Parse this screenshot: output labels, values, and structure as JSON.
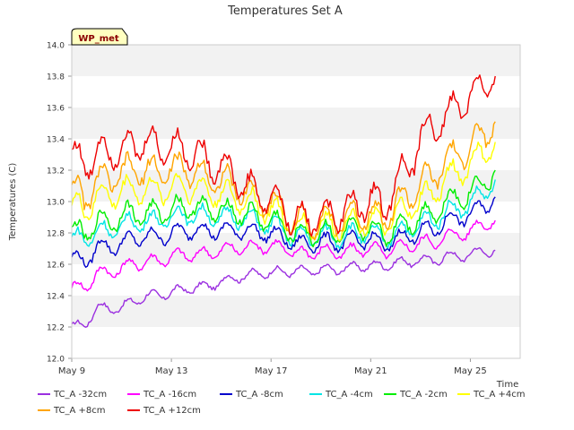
{
  "chart_data": {
    "type": "line",
    "title": "Temperatures Set A",
    "xlabel": "Time",
    "ylabel": "Temperatures (C)",
    "badge": "WP_met",
    "xlim": [
      0,
      18
    ],
    "ylim": [
      12.0,
      14.0
    ],
    "grid": "horizontal bands",
    "legend_position": "bottom",
    "x_ticks": [
      {
        "value": 0,
        "label": "May 9"
      },
      {
        "value": 4,
        "label": "May 13"
      },
      {
        "value": 8,
        "label": "May 17"
      },
      {
        "value": 12,
        "label": "May 21"
      },
      {
        "value": 16,
        "label": "May 25"
      }
    ],
    "y_ticks": [
      12.0,
      12.2,
      12.4,
      12.6,
      12.8,
      13.0,
      13.2,
      13.4,
      13.6,
      13.8,
      14.0
    ],
    "x": [
      0.0,
      0.5,
      1.0,
      1.5,
      2.0,
      2.5,
      3.0,
      3.5,
      4.0,
      4.5,
      5.0,
      5.5,
      6.0,
      6.5,
      7.0,
      7.5,
      8.0,
      8.5,
      9.0,
      9.5,
      10.0,
      10.5,
      11.0,
      11.5,
      12.0,
      12.5,
      13.0,
      13.5,
      14.0,
      14.5,
      15.0,
      15.5,
      16.0,
      16.5,
      17.0
    ],
    "series": [
      {
        "name": "TC_A -32cm",
        "color": "#9b30e0",
        "values": [
          12.21,
          12.2,
          12.33,
          12.31,
          12.33,
          12.36,
          12.4,
          12.4,
          12.42,
          12.44,
          12.45,
          12.46,
          12.49,
          12.51,
          12.53,
          12.54,
          12.55,
          12.55,
          12.56,
          12.55,
          12.57,
          12.56,
          12.58,
          12.58,
          12.6,
          12.58,
          12.62,
          12.6,
          12.64,
          12.61,
          12.66,
          12.64,
          12.67,
          12.68,
          12.69
        ]
      },
      {
        "name": "TC_A -16cm",
        "color": "#ff00ff",
        "values": [
          12.46,
          12.44,
          12.55,
          12.54,
          12.58,
          12.6,
          12.62,
          12.62,
          12.65,
          12.66,
          12.66,
          12.67,
          12.69,
          12.7,
          12.71,
          12.71,
          12.72,
          12.7,
          12.68,
          12.66,
          12.7,
          12.66,
          12.69,
          12.68,
          12.72,
          12.66,
          12.72,
          12.7,
          12.76,
          12.72,
          12.79,
          12.78,
          12.82,
          12.85,
          12.88
        ]
      },
      {
        "name": "TC_A -8cm",
        "color": "#0000cc",
        "values": [
          12.65,
          12.6,
          12.72,
          12.7,
          12.74,
          12.76,
          12.78,
          12.77,
          12.8,
          12.81,
          12.82,
          12.81,
          12.82,
          12.81,
          12.82,
          12.8,
          12.8,
          12.76,
          12.74,
          12.72,
          12.76,
          12.72,
          12.76,
          12.74,
          12.78,
          12.7,
          12.78,
          12.76,
          12.83,
          12.8,
          12.89,
          12.88,
          12.93,
          12.96,
          13.03
        ]
      },
      {
        "name": "TC_A -4cm",
        "color": "#00e5e5",
        "values": [
          12.77,
          12.75,
          12.82,
          12.8,
          12.86,
          12.86,
          12.88,
          12.87,
          12.91,
          12.91,
          12.92,
          12.9,
          12.91,
          12.89,
          12.9,
          12.86,
          12.86,
          12.81,
          12.78,
          12.76,
          12.8,
          12.76,
          12.8,
          12.78,
          12.82,
          12.74,
          12.82,
          12.8,
          12.88,
          12.86,
          12.95,
          12.94,
          13.0,
          13.04,
          13.14
        ]
      },
      {
        "name": "TC_A -2cm",
        "color": "#00ee00",
        "values": [
          12.82,
          12.78,
          12.88,
          12.86,
          12.92,
          12.92,
          12.93,
          12.92,
          12.96,
          12.96,
          12.97,
          12.94,
          12.95,
          12.93,
          12.93,
          12.89,
          12.89,
          12.83,
          12.8,
          12.78,
          12.82,
          12.78,
          12.83,
          12.8,
          12.85,
          12.76,
          12.86,
          12.84,
          12.93,
          12.9,
          13.02,
          13.01,
          13.07,
          13.11,
          13.2
        ]
      },
      {
        "name": "TC_A +4cm",
        "color": "#ffff00",
        "values": [
          13.0,
          12.92,
          13.05,
          13.02,
          13.08,
          13.07,
          13.08,
          13.06,
          13.1,
          13.09,
          13.09,
          13.05,
          13.06,
          13.02,
          13.01,
          12.96,
          12.96,
          12.88,
          12.85,
          12.82,
          12.87,
          12.82,
          12.88,
          12.85,
          12.91,
          12.82,
          12.94,
          12.92,
          13.04,
          13.02,
          13.17,
          13.17,
          13.25,
          13.3,
          13.38
        ]
      },
      {
        "name": "TC_A +8cm",
        "color": "#ffa500",
        "values": [
          13.12,
          12.98,
          13.16,
          13.12,
          13.2,
          13.19,
          13.21,
          13.18,
          13.22,
          13.2,
          13.2,
          13.14,
          13.15,
          13.09,
          13.07,
          13.01,
          13.01,
          12.92,
          12.88,
          12.85,
          12.9,
          12.85,
          12.92,
          12.89,
          12.96,
          12.86,
          13.01,
          13.0,
          13.14,
          13.13,
          13.28,
          13.28,
          13.36,
          13.42,
          13.51
        ]
      },
      {
        "name": "TC_A +12cm",
        "color": "#ee0000",
        "values": [
          13.33,
          13.2,
          13.34,
          13.3,
          13.36,
          13.34,
          13.4,
          13.32,
          13.38,
          13.3,
          13.34,
          13.22,
          13.26,
          13.14,
          13.12,
          13.02,
          13.04,
          12.94,
          12.9,
          12.86,
          12.94,
          12.88,
          12.98,
          12.94,
          13.06,
          12.92,
          13.16,
          13.18,
          13.42,
          13.46,
          13.55,
          13.6,
          13.68,
          13.72,
          13.8
        ]
      }
    ]
  }
}
